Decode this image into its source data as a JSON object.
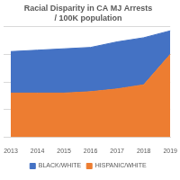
{
  "chart_data": {
    "type": "area",
    "title": "Racial Disparity in CA MJ Arrests / 100K population",
    "categories": [
      "2013",
      "2014",
      "2015",
      "2016",
      "2017",
      "2018",
      "2019"
    ],
    "series": [
      {
        "name": "BLACK/WHITE",
        "color": "#4472c4",
        "values": [
          1.5,
          1.55,
          1.6,
          1.6,
          1.7,
          1.7,
          0.85
        ]
      },
      {
        "name": "HISPANIC/WHITE",
        "color": "#ed7d31",
        "values": [
          1.6,
          1.6,
          1.6,
          1.65,
          1.75,
          1.9,
          3.0
        ]
      }
    ],
    "stacked": true,
    "ylim": [
      0,
      4
    ],
    "yticks": [
      0,
      1,
      2,
      3,
      4
    ],
    "grid": true,
    "legend": "bottom",
    "tick_labels": "x"
  }
}
